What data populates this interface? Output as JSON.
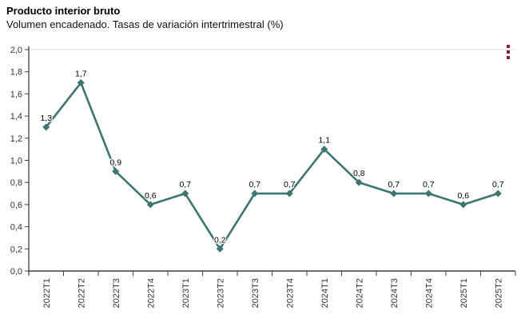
{
  "chart_data": {
    "type": "line",
    "title": "Producto interior bruto",
    "subtitle": "Volumen encadenado. Tasas de variación intertrimestral (%)",
    "categories": [
      "2022T1",
      "2022T2",
      "2022T3",
      "2022T4",
      "2023T1",
      "2023T2",
      "2023T3",
      "2023T4",
      "2024T1",
      "2024T2",
      "2024T3",
      "2024T4",
      "2025T1",
      "2025T2"
    ],
    "values": [
      1.3,
      1.7,
      0.9,
      0.6,
      0.7,
      0.2,
      0.7,
      0.7,
      1.1,
      0.8,
      0.7,
      0.7,
      0.6,
      0.7
    ],
    "data_labels": [
      "1,3",
      "1,7",
      "0,9",
      "0,6",
      "0,7",
      "0,2",
      "0,7",
      "0,7",
      "1,1",
      "0,8",
      "0,7",
      "0,7",
      "0,6",
      "0,7"
    ],
    "xlabel": "",
    "ylabel": "",
    "ylim": [
      0,
      2
    ],
    "ytick_step": 0.2,
    "ytick_labels": [
      "0,0",
      "0,2",
      "0,4",
      "0,6",
      "0,8",
      "1,0",
      "1,2",
      "1,4",
      "1,6",
      "1,8",
      "2,0"
    ],
    "grid": false,
    "legend": "none",
    "marker": "diamond",
    "line_color": "#3d7572",
    "axis_color": "#404040",
    "tick_label_color": "#333333",
    "data_label_color": "#000000",
    "top_border_color": "#dcdcdc"
  },
  "context_menu": {
    "icon": "kebab-vertical-dots",
    "color": "#8a2130"
  }
}
